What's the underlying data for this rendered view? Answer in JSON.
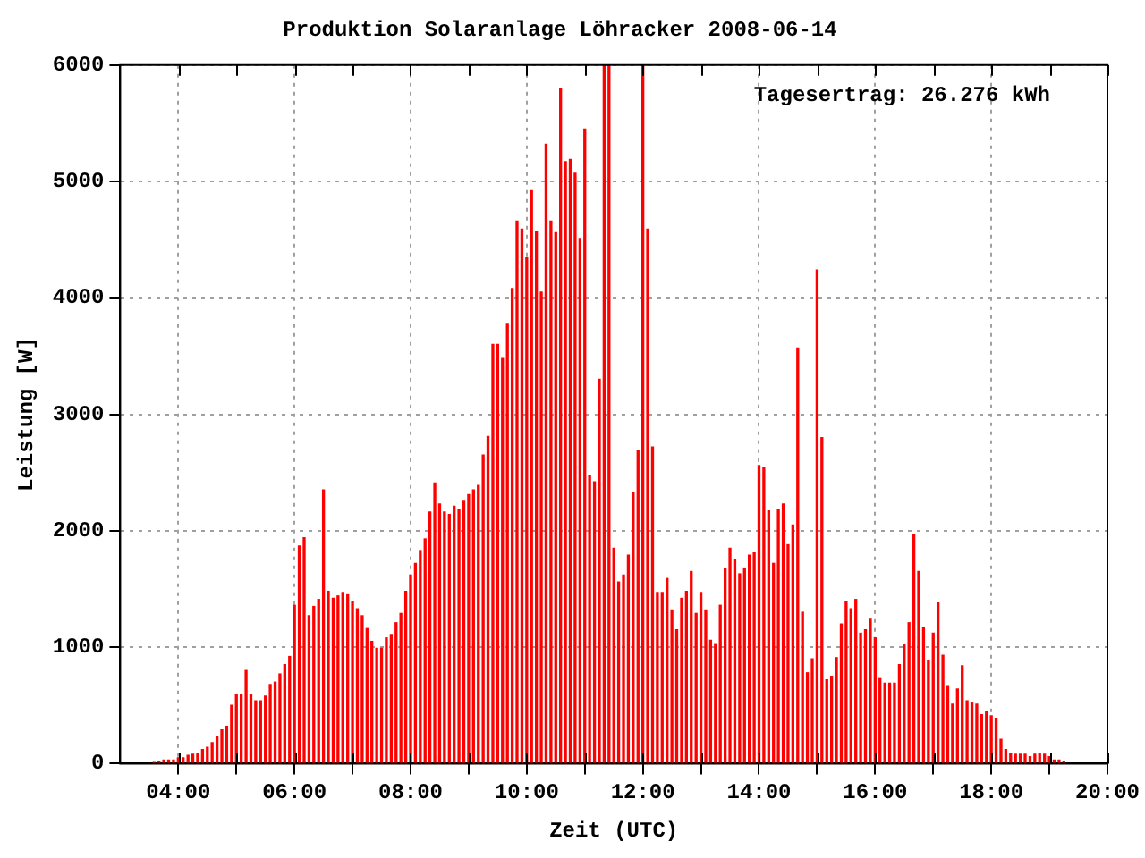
{
  "chart_data": {
    "type": "bar",
    "title": "Produktion Solaranlage Löhracker 2008-06-14",
    "xlabel": "Zeit (UTC)",
    "ylabel": "Leistung [W]",
    "annotations": [
      "Tagesertrag: 26.276 kWh"
    ],
    "x": [
      3.583,
      3.667,
      3.75,
      3.833,
      3.917,
      4,
      4.083,
      4.167,
      4.25,
      4.333,
      4.417,
      4.5,
      4.583,
      4.667,
      4.75,
      4.833,
      4.917,
      5,
      5.083,
      5.167,
      5.25,
      5.333,
      5.417,
      5.5,
      5.583,
      5.667,
      5.75,
      5.833,
      5.917,
      6,
      6.083,
      6.167,
      6.25,
      6.333,
      6.417,
      6.5,
      6.583,
      6.667,
      6.75,
      6.833,
      6.917,
      7,
      7.083,
      7.167,
      7.25,
      7.333,
      7.417,
      7.5,
      7.583,
      7.667,
      7.75,
      7.833,
      7.917,
      8,
      8.083,
      8.167,
      8.25,
      8.333,
      8.417,
      8.5,
      8.583,
      8.667,
      8.75,
      8.833,
      8.917,
      9,
      9.083,
      9.167,
      9.25,
      9.333,
      9.417,
      9.5,
      9.583,
      9.667,
      9.75,
      9.833,
      9.917,
      10,
      10.083,
      10.167,
      10.25,
      10.333,
      10.417,
      10.5,
      10.583,
      10.667,
      10.75,
      10.833,
      10.917,
      11,
      11.083,
      11.167,
      11.25,
      11.333,
      11.417,
      11.5,
      11.583,
      11.667,
      11.75,
      11.833,
      11.917,
      12,
      12.083,
      12.167,
      12.25,
      12.333,
      12.417,
      12.5,
      12.583,
      12.667,
      12.75,
      12.833,
      12.917,
      13,
      13.083,
      13.167,
      13.25,
      13.333,
      13.417,
      13.5,
      13.583,
      13.667,
      13.75,
      13.833,
      13.917,
      14,
      14.083,
      14.167,
      14.25,
      14.333,
      14.417,
      14.5,
      14.583,
      14.667,
      14.75,
      14.833,
      14.917,
      15,
      15.083,
      15.167,
      15.25,
      15.333,
      15.417,
      15.5,
      15.583,
      15.667,
      15.75,
      15.833,
      15.917,
      16,
      16.083,
      16.167,
      16.25,
      16.333,
      16.417,
      16.5,
      16.583,
      16.667,
      16.75,
      16.833,
      16.917,
      17,
      17.083,
      17.167,
      17.25,
      17.333,
      17.417,
      17.5,
      17.583,
      17.667,
      17.75,
      17.833,
      17.917,
      18,
      18.083,
      18.167,
      18.25,
      18.333,
      18.417,
      18.5,
      18.583,
      18.667,
      18.75,
      18.833,
      18.917,
      19,
      19.083,
      19.167,
      19.25
    ],
    "values": [
      10,
      20,
      30,
      30,
      30,
      50,
      50,
      70,
      80,
      90,
      120,
      140,
      180,
      230,
      290,
      320,
      500,
      590,
      590,
      800,
      590,
      540,
      540,
      580,
      680,
      700,
      770,
      850,
      920,
      1360,
      1870,
      1940,
      1270,
      1350,
      1410,
      2350,
      1480,
      1420,
      1440,
      1470,
      1450,
      1390,
      1330,
      1270,
      1160,
      1050,
      990,
      990,
      1080,
      1110,
      1210,
      1290,
      1480,
      1620,
      1720,
      1830,
      1930,
      2160,
      2410,
      2230,
      2160,
      2140,
      2210,
      2180,
      2260,
      2310,
      2350,
      2390,
      2650,
      2810,
      3600,
      3600,
      3480,
      3780,
      4080,
      4660,
      4590,
      4350,
      4920,
      4570,
      4050,
      5320,
      4660,
      4560,
      5800,
      5170,
      5190,
      5070,
      4510,
      5450,
      2470,
      2420,
      3300,
      6000,
      6000,
      1850,
      1560,
      1620,
      1790,
      2330,
      2690,
      6000,
      4590,
      2720,
      1470,
      1470,
      1590,
      1320,
      1150,
      1420,
      1480,
      1650,
      1290,
      1470,
      1320,
      1060,
      1030,
      1360,
      1680,
      1850,
      1750,
      1630,
      1680,
      1790,
      1810,
      2560,
      2540,
      2170,
      1720,
      2180,
      2230,
      1880,
      2050,
      3570,
      1300,
      780,
      900,
      4240,
      2800,
      720,
      750,
      910,
      1200,
      1390,
      1330,
      1410,
      1120,
      1150,
      1240,
      1080,
      730,
      690,
      690,
      690,
      850,
      1020,
      1210,
      1970,
      1650,
      1170,
      880,
      1120,
      1380,
      930,
      670,
      510,
      640,
      840,
      540,
      520,
      510,
      420,
      450,
      410,
      390,
      210,
      120,
      90,
      80,
      80,
      80,
      60,
      80,
      90,
      80,
      60,
      30,
      30,
      20
    ],
    "color": "#ff0000",
    "xlim": [
      3,
      20
    ],
    "xticks": [
      {
        "value": 4,
        "label": "04:00"
      },
      {
        "value": 5,
        "label": null
      },
      {
        "value": 6,
        "label": "06:00"
      },
      {
        "value": 7,
        "label": null
      },
      {
        "value": 8,
        "label": "08:00"
      },
      {
        "value": 9,
        "label": null
      },
      {
        "value": 10,
        "label": "10:00"
      },
      {
        "value": 11,
        "label": null
      },
      {
        "value": 12,
        "label": "12:00"
      },
      {
        "value": 13,
        "label": null
      },
      {
        "value": 14,
        "label": "14:00"
      },
      {
        "value": 15,
        "label": null
      },
      {
        "value": 16,
        "label": "16:00"
      },
      {
        "value": 17,
        "label": null
      },
      {
        "value": 18,
        "label": "18:00"
      },
      {
        "value": 19,
        "label": null
      },
      {
        "value": 20,
        "label": "20:00"
      }
    ],
    "ylim": [
      0,
      6000
    ],
    "yticks": [
      0,
      1000,
      2000,
      3000,
      4000,
      5000,
      6000
    ],
    "grid": true
  }
}
